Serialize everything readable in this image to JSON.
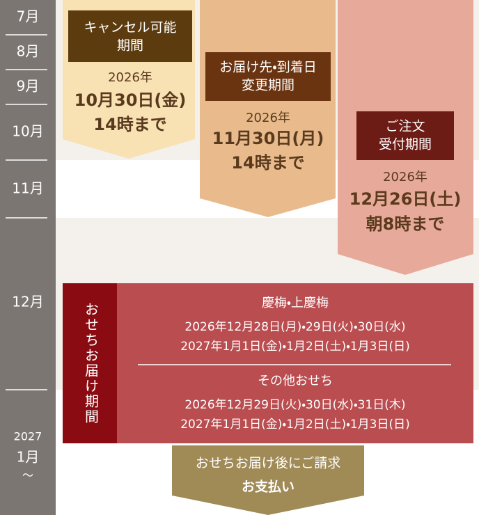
{
  "months": [
    "7月",
    "8月",
    "9月",
    "10月",
    "11月",
    "12月"
  ],
  "next_year": {
    "year": "2027",
    "month": "1月",
    "tilde": "〜"
  },
  "periods": [
    {
      "label": [
        "キャンセル可能",
        "期間"
      ],
      "year": "2026年",
      "date": "10月30日(金)",
      "time": "14時まで"
    },
    {
      "label": [
        "お届け先・到着日",
        "変更期間"
      ],
      "year": "2026年",
      "date": "11月30日(月)",
      "time": "14時まで"
    },
    {
      "label": [
        "ご注文",
        "受付期間"
      ],
      "year": "2026年",
      "date": "12月26日(土)",
      "time": "朝8時まで"
    }
  ],
  "delivery": {
    "label": "おせちお届け期間",
    "groups": [
      {
        "title": "慶梅・上慶梅",
        "lines": [
          "2026年12月28日(月)・29日(火)・30日(水)",
          "2027年1月1日(金)・1月2日(土)・1月3日(日)"
        ]
      },
      {
        "title": "その他おせち",
        "lines": [
          "2026年12月29日(火)・30日(水)・31日(木)",
          "2027年1月1日(金)・1月2日(土)・1月3日(日)"
        ]
      }
    ]
  },
  "payment": {
    "line1": "おせちお届け後にご請求",
    "line2": "お支払い"
  }
}
